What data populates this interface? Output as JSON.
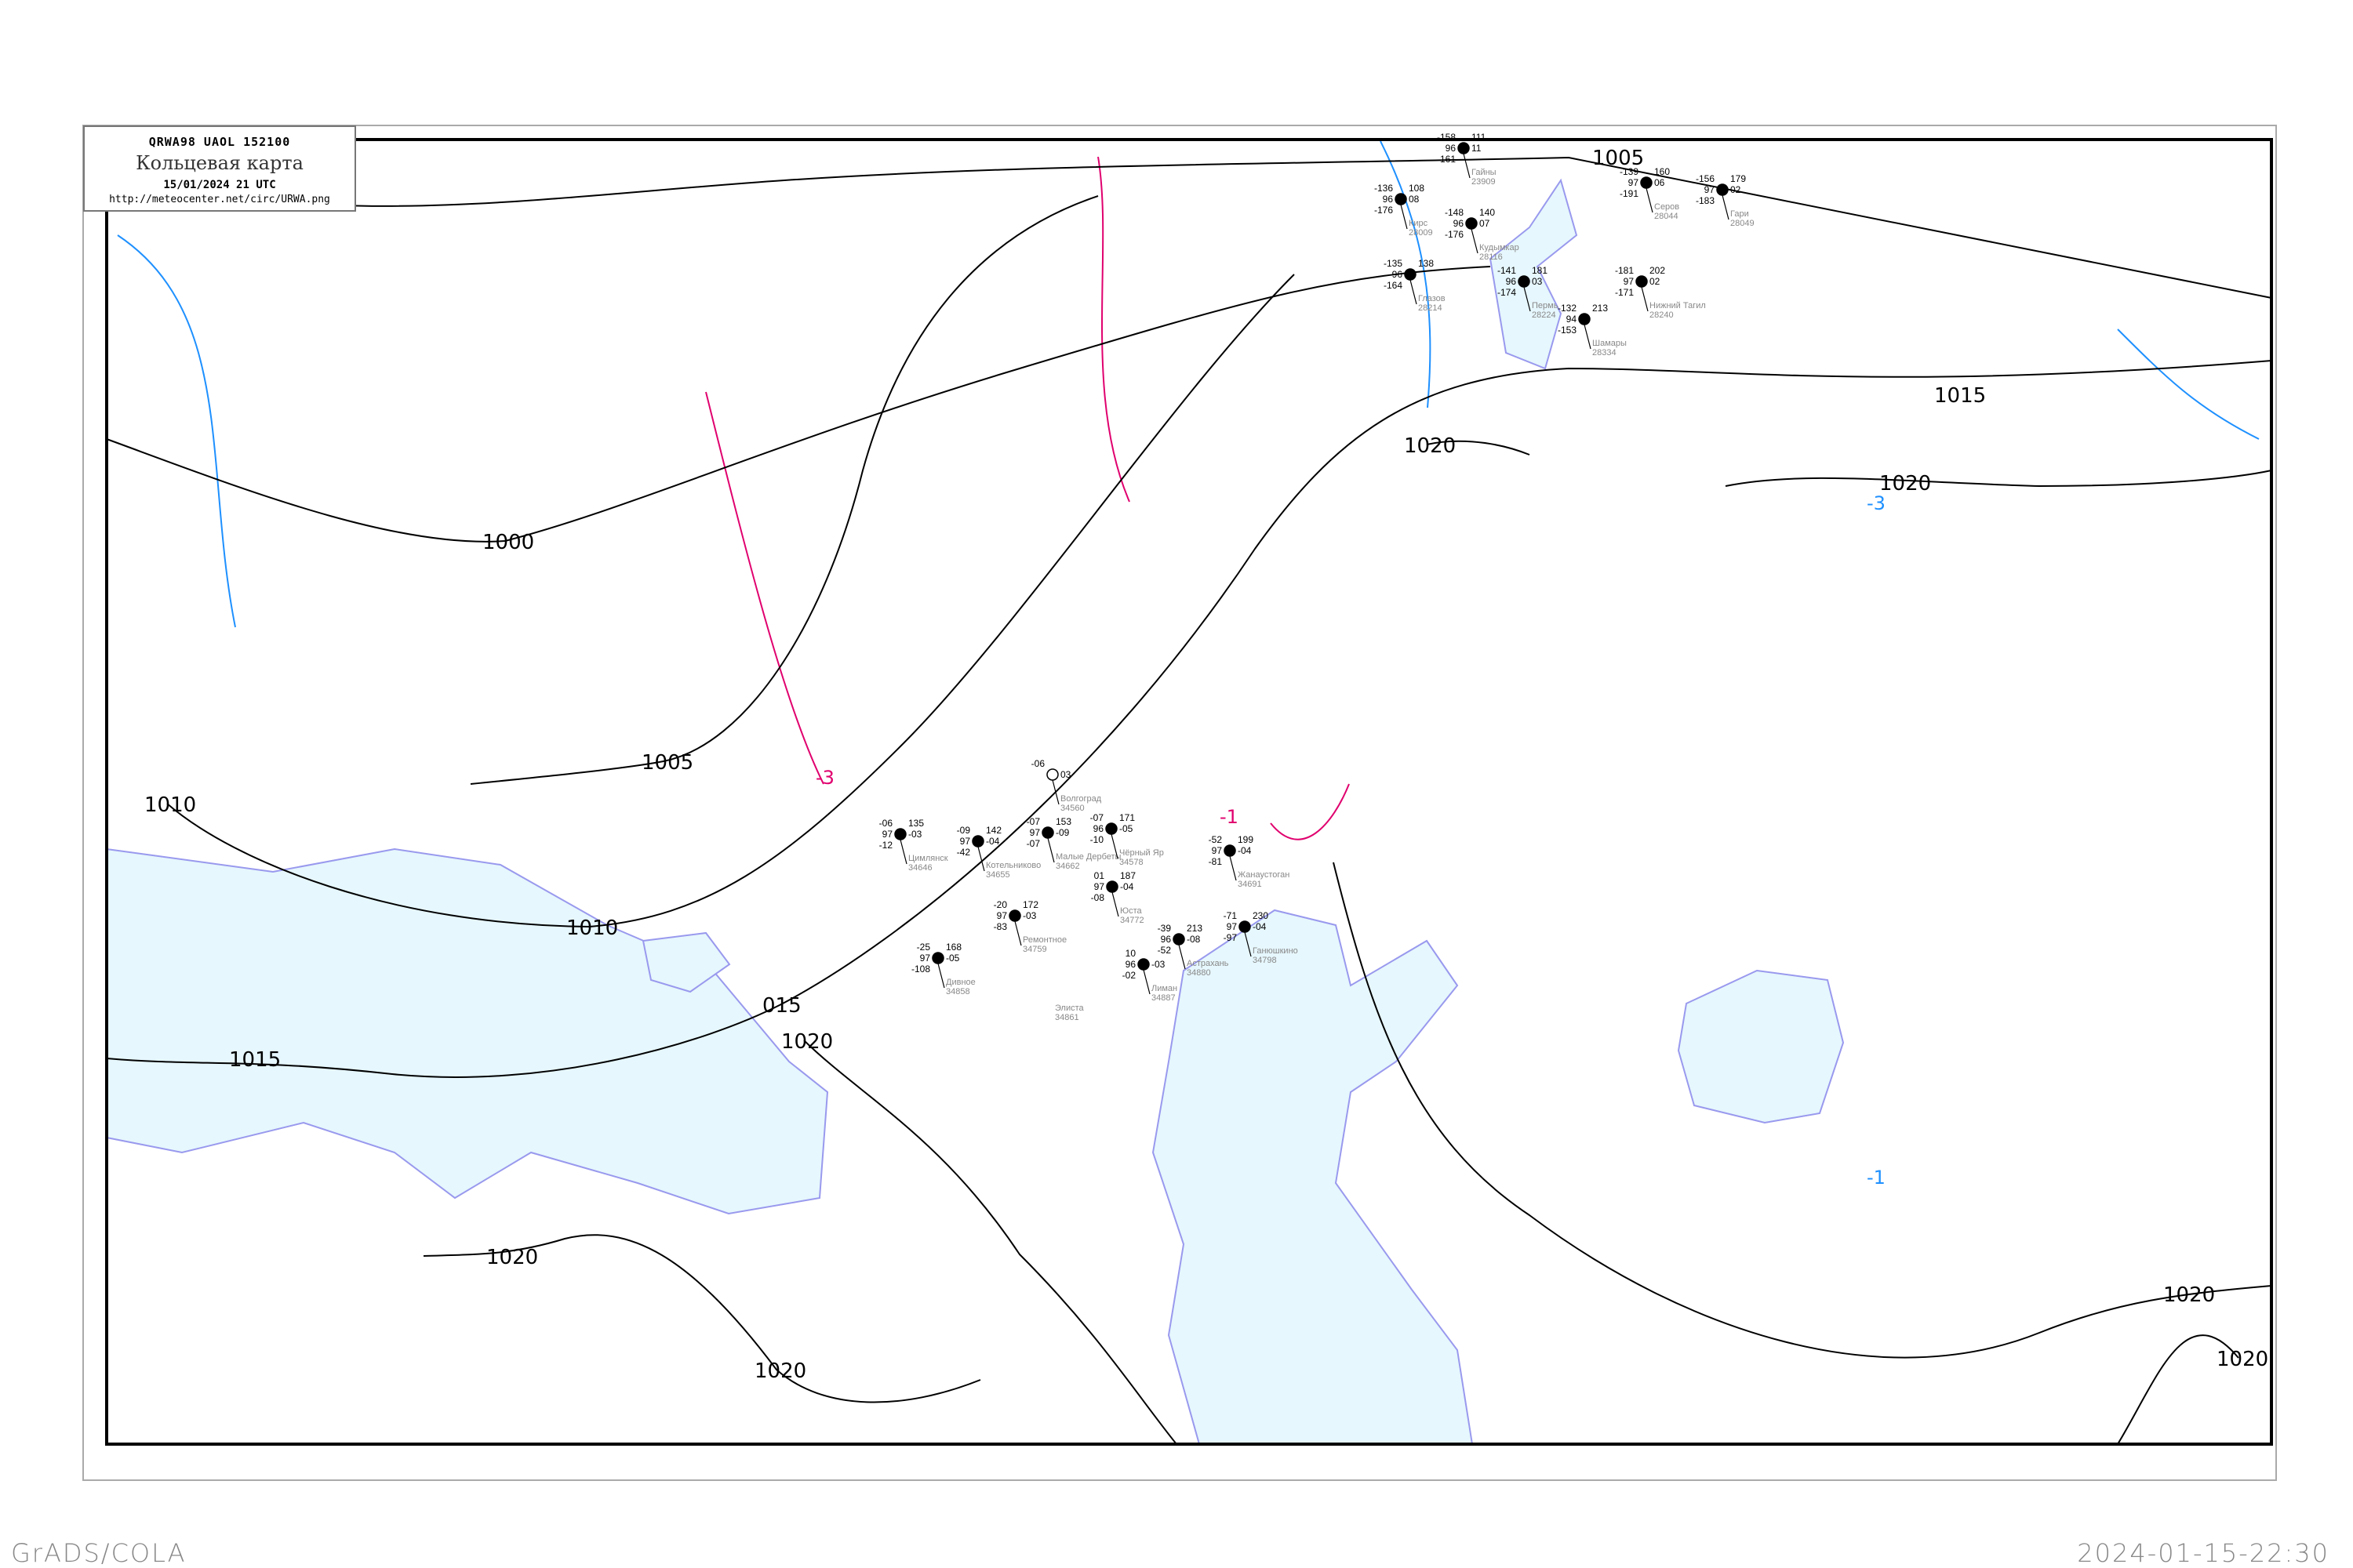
{
  "header": {
    "code": "QRWA98  UAOL  152100",
    "title": "Кольцевая карта",
    "datetime": "15/01/2024 21 UTC",
    "url": "http://meteocenter.net/circ/URWA.png"
  },
  "footer": {
    "software": "GrADS/COLA",
    "timestamp": "2024-01-15-22:30"
  },
  "colors": {
    "isobar": "#000000",
    "isotherm_negative": "#1e90ff",
    "isotherm_zero": "#e0006e",
    "water": "#e6f7fd",
    "coast": "#9999ee",
    "station_name": "#888888",
    "snow_marker": "#3a8ee6",
    "fog_marker": "#fff59a"
  },
  "isobar_labels": [
    "1005",
    "1000",
    "1005",
    "1010",
    "1010",
    "1015",
    "1015",
    "1020",
    "1020",
    "1020",
    "1020",
    "1020",
    "1020",
    "1020",
    "015"
  ],
  "isotherm_labels": [
    "-3",
    "-1",
    "-3",
    "-1"
  ],
  "stations": [
    {
      "name": "Волгоград",
      "id": "34560",
      "t": "-06",
      "vis": "",
      "p": "",
      "tend": "03",
      "td": ""
    },
    {
      "name": "Котельниково",
      "id": "34655",
      "t": "-09",
      "vis": "97",
      "p": "142",
      "tend": "-04",
      "td": "-42"
    },
    {
      "name": "Цимлянск",
      "id": "34646",
      "t": "-06",
      "vis": "97",
      "p": "135",
      "tend": "-03",
      "td": "-12"
    },
    {
      "name": "Малые Дербеты",
      "id": "34662",
      "t": "-07",
      "vis": "97",
      "p": "153",
      "tend": "-09",
      "td": "-07"
    },
    {
      "name": "Чёрный Яр",
      "id": "34578",
      "t": "-07",
      "vis": "96",
      "p": "171",
      "tend": "-05",
      "td": "-10"
    },
    {
      "name": "Юста",
      "id": "34772",
      "t": "01",
      "vis": "97",
      "p": "187",
      "tend": "-04",
      "td": "-08"
    },
    {
      "name": "Жанаустоган",
      "id": "34691",
      "t": "-52",
      "vis": "97",
      "p": "199",
      "tend": "-04",
      "td": "-81"
    },
    {
      "name": "Ремонтное",
      "id": "34759",
      "t": "-20",
      "vis": "97",
      "p": "172",
      "tend": "-03",
      "td": "-83"
    },
    {
      "name": "Дивное",
      "id": "34858",
      "t": "-25",
      "vis": "97",
      "p": "168",
      "tend": "-05",
      "td": "-108"
    },
    {
      "name": "Лиман",
      "id": "34887",
      "t": "10",
      "vis": "96",
      "p": "",
      "tend": "-03",
      "td": "-02"
    },
    {
      "name": "Астрахань",
      "id": "34880",
      "t": "-39",
      "vis": "96",
      "p": "213",
      "tend": "-08",
      "td": "-52"
    },
    {
      "name": "Ганюшкино",
      "id": "34798",
      "t": "-71",
      "vis": "97",
      "p": "230",
      "tend": "-04",
      "td": "-97"
    },
    {
      "name": "Элиста",
      "id": "34861",
      "t": "",
      "vis": "",
      "p": "",
      "tend": "",
      "td": ""
    },
    {
      "name": "Гайны",
      "id": "23909",
      "t": "-158",
      "vis": "96",
      "p": "111",
      "tend": "11",
      "td": "-161"
    },
    {
      "name": "Кирс",
      "id": "28009",
      "t": "-136",
      "vis": "96",
      "p": "108",
      "tend": "08",
      "td": "-176"
    },
    {
      "name": "Кудымкар",
      "id": "28116",
      "t": "-148",
      "vis": "96",
      "p": "140",
      "tend": "07",
      "td": "-176"
    },
    {
      "name": "Глазов",
      "id": "28214",
      "t": "-135",
      "vis": "96",
      "p": "138",
      "tend": "",
      "td": "-164"
    },
    {
      "name": "Пермь",
      "id": "28224",
      "t": "-141",
      "vis": "96",
      "p": "181",
      "tend": "03",
      "td": "-174"
    },
    {
      "name": "Серов",
      "id": "28044",
      "t": "-139",
      "vis": "97",
      "p": "160",
      "tend": "06",
      "td": "-191"
    },
    {
      "name": "Гари",
      "id": "28049",
      "t": "-156",
      "vis": "97",
      "p": "179",
      "tend": "02",
      "td": "-183"
    },
    {
      "name": "Нижний Тагил",
      "id": "28240",
      "t": "-181",
      "vis": "97",
      "p": "202",
      "tend": "02",
      "td": "-171"
    },
    {
      "name": "Шамары",
      "id": "28334",
      "t": "-132",
      "vis": "94",
      "p": "213",
      "tend": "",
      "td": "-153"
    }
  ]
}
